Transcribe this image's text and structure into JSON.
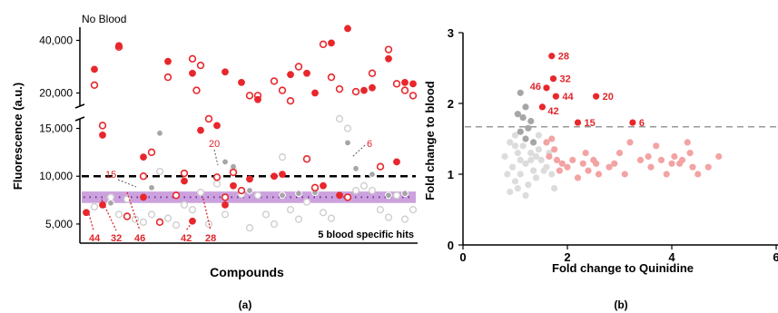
{
  "colors": {
    "red": "#e8272c",
    "grey": "#a6a6a6",
    "lightgrey": "#cfcfcf",
    "pink": "#f3a3a3",
    "band": "#b77ad0",
    "dots": "#7a2f9a"
  },
  "chart_data": [
    {
      "id": "a",
      "type": "scatter",
      "panel_label": "(a)",
      "annotation_top": "No Blood",
      "ylabel": "Fluorescence (a.u.)",
      "xlabel": "Compounds",
      "y_ticks_upper": [
        "40,000",
        "20,000"
      ],
      "y_ticks_lower": [
        "15,000",
        "10,000",
        "5,000"
      ],
      "y_tick_values_upper": [
        40000,
        20000
      ],
      "y_tick_values_lower": [
        15000,
        10000,
        5000
      ],
      "ylim_upper": [
        15000,
        45000
      ],
      "ylim_lower": [
        3000,
        16000
      ],
      "threshold_line": 10000,
      "band": [
        7200,
        8400
      ],
      "band_center": 7800,
      "hits_label": "5 blood specific hits",
      "hit_labels": [
        "44",
        "32",
        "46",
        "42",
        "28"
      ],
      "side_labels": [
        "15",
        "20",
        "6"
      ],
      "series": [
        {
          "style": "red-filled",
          "points": [
            [
              2,
              29000
            ],
            [
              3,
              14300
            ],
            [
              5,
              38000
            ],
            [
              8,
              12000
            ],
            [
              11,
              32000
            ],
            [
              13,
              9500
            ],
            [
              14,
              27500
            ],
            [
              15,
              14800
            ],
            [
              17,
              15300
            ],
            [
              18,
              28000
            ],
            [
              19,
              9000
            ],
            [
              20,
              24000
            ],
            [
              21,
              9700
            ],
            [
              22,
              17500
            ],
            [
              24,
              10000
            ],
            [
              25,
              10200
            ],
            [
              26,
              27000
            ],
            [
              28,
              27500
            ],
            [
              29,
              20000
            ],
            [
              30,
              9000
            ],
            [
              31,
              39000
            ],
            [
              32,
              8000
            ],
            [
              33,
              44500
            ],
            [
              35,
              21000
            ],
            [
              36,
              22000
            ],
            [
              38,
              33000
            ],
            [
              39,
              11500
            ],
            [
              40,
              24000
            ],
            [
              41,
              23500
            ]
          ]
        },
        {
          "style": "red-open",
          "points": [
            [
              2,
              23000
            ],
            [
              3,
              15300
            ],
            [
              5,
              37500
            ],
            [
              6,
              5800
            ],
            [
              8,
              10000
            ],
            [
              9,
              12500
            ],
            [
              10,
              5200
            ],
            [
              11,
              26000
            ],
            [
              12,
              8000
            ],
            [
              13,
              10300
            ],
            [
              14,
              33000
            ],
            [
              14.5,
              21000
            ],
            [
              15,
              30500
            ],
            [
              16,
              16000
            ],
            [
              17,
              9900
            ],
            [
              18,
              7800
            ],
            [
              19,
              10400
            ],
            [
              20,
              8500
            ],
            [
              21,
              19000
            ],
            [
              22,
              19000
            ],
            [
              24,
              24500
            ],
            [
              25,
              21000
            ],
            [
              26,
              17000
            ],
            [
              27,
              30000
            ],
            [
              28,
              11800
            ],
            [
              29,
              8800
            ],
            [
              30,
              38500
            ],
            [
              31,
              26000
            ],
            [
              32,
              21500
            ],
            [
              33,
              7800
            ],
            [
              34,
              20500
            ],
            [
              36,
              27500
            ],
            [
              37,
              11000
            ],
            [
              38,
              36500
            ],
            [
              39,
              23500
            ],
            [
              40,
              21000
            ],
            [
              41,
              19000
            ]
          ]
        },
        {
          "style": "grey-filled",
          "points": [
            [
              4,
              7200
            ],
            [
              9,
              8800
            ],
            [
              10,
              14500
            ],
            [
              13,
              9500
            ],
            [
              18,
              11500
            ],
            [
              19,
              11000
            ],
            [
              21,
              8500
            ],
            [
              25,
              8000
            ],
            [
              27,
              8200
            ],
            [
              29,
              8300
            ],
            [
              33,
              13500
            ],
            [
              34,
              10800
            ],
            [
              36,
              10200
            ],
            [
              38,
              8000
            ],
            [
              40,
              8200
            ]
          ]
        },
        {
          "style": "grey-open",
          "points": [
            [
              2,
              6800
            ],
            [
              4,
              7800
            ],
            [
              5,
              6000
            ],
            [
              6,
              7600
            ],
            [
              7,
              5500
            ],
            [
              8,
              5200
            ],
            [
              9,
              6000
            ],
            [
              10,
              10500
            ],
            [
              11,
              5600
            ],
            [
              12,
              4900
            ],
            [
              13,
              7000
            ],
            [
              14,
              6500
            ],
            [
              15,
              8300
            ],
            [
              16,
              5000
            ],
            [
              17,
              9200
            ],
            [
              18,
              6000
            ],
            [
              19,
              10800
            ],
            [
              20,
              8100
            ],
            [
              21,
              4600
            ],
            [
              22,
              8000
            ],
            [
              23,
              6000
            ],
            [
              24,
              5000
            ],
            [
              25,
              12000
            ],
            [
              26,
              6500
            ],
            [
              27,
              5500
            ],
            [
              28,
              7300
            ],
            [
              29,
              8600
            ],
            [
              30,
              6200
            ],
            [
              31,
              5600
            ],
            [
              32,
              16000
            ],
            [
              33,
              15000
            ],
            [
              34,
              8500
            ],
            [
              35,
              9000
            ],
            [
              36,
              8500
            ],
            [
              37,
              6500
            ],
            [
              38,
              5700
            ],
            [
              39,
              8000
            ],
            [
              40,
              5500
            ],
            [
              41,
              6500
            ]
          ]
        },
        {
          "style": "red-filled-hits",
          "points": [
            [
              1,
              6200
            ],
            [
              3,
              7000
            ],
            [
              8,
              7800
            ],
            [
              14,
              5300
            ],
            [
              18,
              7000
            ]
          ]
        }
      ]
    },
    {
      "id": "b",
      "type": "scatter",
      "panel_label": "(b)",
      "xlabel": "Fold change to Quinidine",
      "ylabel": "Fold change to blood",
      "xlim": [
        0,
        6
      ],
      "ylim": [
        0,
        3
      ],
      "x_ticks": [
        "0",
        "2",
        "4",
        "6"
      ],
      "x_tick_values": [
        0,
        2,
        4,
        6
      ],
      "y_ticks": [
        "0",
        "1",
        "2",
        "3"
      ],
      "y_tick_values": [
        0,
        1,
        2,
        3
      ],
      "threshold_line": 1.67,
      "series": [
        {
          "style": "red",
          "labels": [
            "28",
            "32",
            "46",
            "44",
            "20",
            "42",
            "15",
            "6"
          ],
          "points": [
            [
              1.7,
              2.67
            ],
            [
              1.73,
              2.35
            ],
            [
              1.6,
              2.22
            ],
            [
              1.78,
              2.1
            ],
            [
              2.55,
              2.1
            ],
            [
              1.52,
              1.95
            ],
            [
              2.2,
              1.73
            ],
            [
              3.25,
              1.73
            ]
          ]
        },
        {
          "style": "grey",
          "points": [
            [
              1.1,
              2.15
            ],
            [
              1.2,
              1.95
            ],
            [
              1.15,
              1.8
            ],
            [
              1.3,
              1.75
            ],
            [
              1.25,
              1.65
            ],
            [
              1.1,
              1.6
            ],
            [
              1.2,
              1.5
            ],
            [
              1.35,
              1.45
            ],
            [
              1.05,
              1.85
            ]
          ]
        },
        {
          "style": "lightgrey",
          "points": [
            [
              0.8,
              1.25
            ],
            [
              0.9,
              1.45
            ],
            [
              0.95,
              1.1
            ],
            [
              1.0,
              0.9
            ],
            [
              1.05,
              1.3
            ],
            [
              1.1,
              1.0
            ],
            [
              1.15,
              1.4
            ],
            [
              1.2,
              1.15
            ],
            [
              1.25,
              0.85
            ],
            [
              1.3,
              1.3
            ],
            [
              1.35,
              1.05
            ],
            [
              1.4,
              0.95
            ],
            [
              1.45,
              1.35
            ],
            [
              1.5,
              1.2
            ],
            [
              1.55,
              1.05
            ],
            [
              1.0,
              1.55
            ],
            [
              1.1,
              1.2
            ],
            [
              0.9,
              0.75
            ],
            [
              1.05,
              0.8
            ],
            [
              1.2,
              0.7
            ],
            [
              1.3,
              1.2
            ],
            [
              1.45,
              1.55
            ],
            [
              1.6,
              1.1
            ],
            [
              1.65,
              1.3
            ],
            [
              1.7,
              1.0
            ],
            [
              1.75,
              0.8
            ],
            [
              1.4,
              1.25
            ],
            [
              1.0,
              1.4
            ],
            [
              0.85,
              1.0
            ]
          ]
        },
        {
          "style": "pink",
          "points": [
            [
              1.6,
              1.45
            ],
            [
              1.7,
              1.5
            ],
            [
              1.75,
              1.35
            ],
            [
              1.8,
              1.2
            ],
            [
              1.9,
              1.15
            ],
            [
              2.0,
              1.1
            ],
            [
              2.1,
              1.2
            ],
            [
              2.2,
              0.95
            ],
            [
              2.3,
              1.15
            ],
            [
              2.4,
              1.05
            ],
            [
              2.5,
              1.2
            ],
            [
              2.6,
              1.0
            ],
            [
              2.8,
              1.1
            ],
            [
              2.9,
              1.15
            ],
            [
              3.1,
              1.0
            ],
            [
              3.2,
              1.45
            ],
            [
              3.4,
              1.2
            ],
            [
              3.6,
              1.1
            ],
            [
              3.7,
              1.4
            ],
            [
              3.8,
              1.2
            ],
            [
              3.9,
              1.0
            ],
            [
              4.0,
              1.15
            ],
            [
              4.05,
              1.25
            ],
            [
              4.2,
              1.2
            ],
            [
              4.3,
              1.45
            ],
            [
              4.35,
              1.3
            ],
            [
              4.4,
              1.1
            ],
            [
              4.5,
              1.0
            ],
            [
              4.7,
              1.1
            ],
            [
              4.9,
              1.25
            ],
            [
              1.65,
              1.25
            ],
            [
              2.35,
              1.3
            ],
            [
              2.55,
              1.15
            ],
            [
              3.0,
              1.3
            ],
            [
              3.55,
              1.25
            ],
            [
              4.15,
              1.15
            ],
            [
              1.85,
              1.05
            ]
          ]
        }
      ]
    }
  ]
}
